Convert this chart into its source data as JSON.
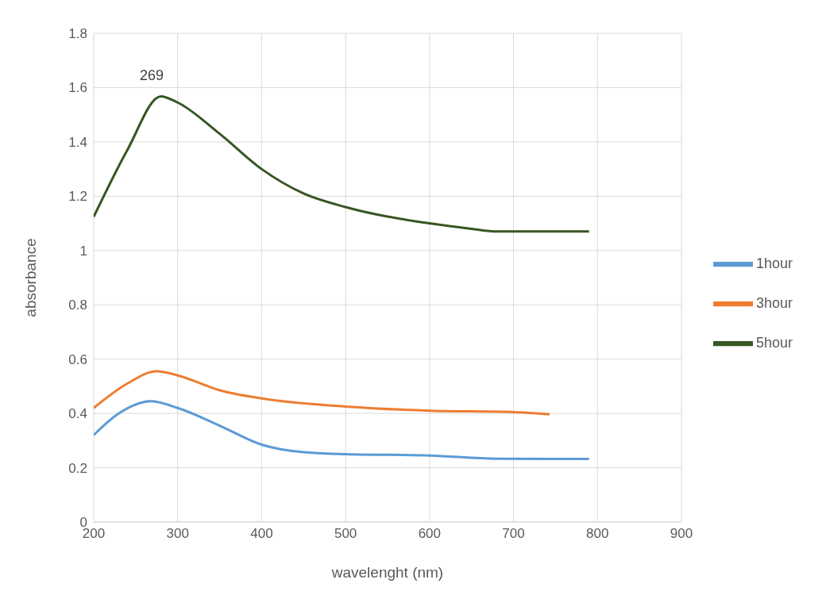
{
  "chart_data": {
    "type": "line",
    "xlabel": "wavelenght (nm)",
    "ylabel": "absorbance",
    "xlim": [
      200,
      900
    ],
    "xticks": [
      200,
      300,
      400,
      500,
      600,
      700,
      800,
      900
    ],
    "ylim": [
      0,
      1.8
    ],
    "yticks": [
      0,
      0.2,
      0.4,
      0.6,
      0.8,
      1,
      1.2,
      1.4,
      1.6,
      1.8
    ],
    "grid": true,
    "legend": "right",
    "marker": "none",
    "line_style": "solid",
    "annotations": [
      {
        "text": "269",
        "x": 269,
        "y": 1.57
      }
    ],
    "series": [
      {
        "name": "1hour",
        "color": "#5b9bd5",
        "x": [
          200,
          230,
          268,
          300,
          350,
          400,
          450,
          500,
          600,
          680,
          790
        ],
        "values": [
          0.32,
          0.4,
          0.445,
          0.42,
          0.355,
          0.285,
          0.257,
          0.25,
          0.245,
          0.233,
          0.232
        ]
      },
      {
        "name": "3hour",
        "color": "#ed7d31",
        "x": [
          200,
          240,
          275,
          300,
          350,
          400,
          500,
          600,
          700,
          743
        ],
        "values": [
          0.42,
          0.51,
          0.555,
          0.54,
          0.485,
          0.455,
          0.425,
          0.41,
          0.405,
          0.397
        ]
      },
      {
        "name": "5hour",
        "color": "#375623",
        "x": [
          200,
          240,
          280,
          300,
          350,
          400,
          450,
          500,
          600,
          650,
          680,
          790
        ],
        "values": [
          1.124,
          1.37,
          1.568,
          1.545,
          1.43,
          1.3,
          1.21,
          1.16,
          1.1,
          1.08,
          1.07,
          1.07
        ]
      }
    ]
  }
}
